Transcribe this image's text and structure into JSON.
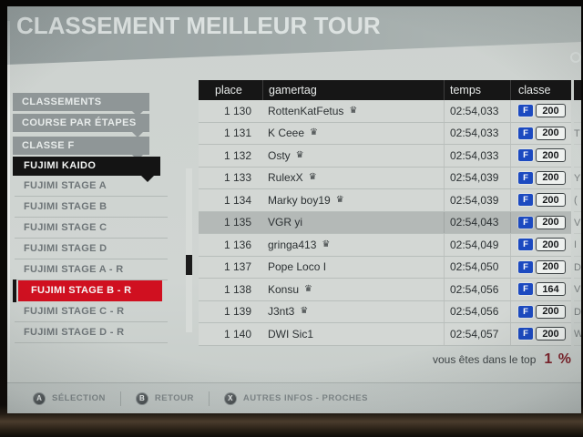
{
  "title": "CLASSEMENT MEILLEUR TOUR",
  "sidebar": {
    "tabs": [
      {
        "label": "CLASSEMENTS"
      },
      {
        "label": "COURSE PAR ÉTAPES"
      },
      {
        "label": "CLASSE F"
      }
    ],
    "section": {
      "label": "FUJIMI KAIDO"
    },
    "items": [
      {
        "label": "FUJIMI STAGE A",
        "selected": false
      },
      {
        "label": "FUJIMI STAGE B",
        "selected": false
      },
      {
        "label": "FUJIMI STAGE C",
        "selected": false
      },
      {
        "label": "FUJIMI STAGE D",
        "selected": false
      },
      {
        "label": "FUJIMI STAGE A - R",
        "selected": false
      },
      {
        "label": "FUJIMI STAGE B - R",
        "selected": true
      },
      {
        "label": "FUJIMI STAGE C - R",
        "selected": false
      },
      {
        "label": "FUJIMI STAGE D - R",
        "selected": false
      }
    ]
  },
  "table": {
    "columns": {
      "place": "place",
      "gamertag": "gamertag",
      "temps": "temps",
      "classe": "classe"
    },
    "rows": [
      {
        "place": "1 130",
        "gamertag": "RottenKatFetus",
        "crown": true,
        "temps": "02:54,033",
        "class_letter": "F",
        "class_value": "200",
        "highlighted": false,
        "edge_fragment": ""
      },
      {
        "place": "1 131",
        "gamertag": "K Ceee",
        "crown": true,
        "temps": "02:54,033",
        "class_letter": "F",
        "class_value": "200",
        "highlighted": false,
        "edge_fragment": "T"
      },
      {
        "place": "1 132",
        "gamertag": "Osty",
        "crown": true,
        "temps": "02:54,033",
        "class_letter": "F",
        "class_value": "200",
        "highlighted": false,
        "edge_fragment": ""
      },
      {
        "place": "1 133",
        "gamertag": "RulexX",
        "crown": true,
        "temps": "02:54,039",
        "class_letter": "F",
        "class_value": "200",
        "highlighted": false,
        "edge_fragment": "Y"
      },
      {
        "place": "1 134",
        "gamertag": "Marky boy19",
        "crown": true,
        "temps": "02:54,039",
        "class_letter": "F",
        "class_value": "200",
        "highlighted": false,
        "edge_fragment": "("
      },
      {
        "place": "1 135",
        "gamertag": "VGR yi",
        "crown": false,
        "temps": "02:54,043",
        "class_letter": "F",
        "class_value": "200",
        "highlighted": true,
        "edge_fragment": "V"
      },
      {
        "place": "1 136",
        "gamertag": "gringa413",
        "crown": true,
        "temps": "02:54,049",
        "class_letter": "F",
        "class_value": "200",
        "highlighted": false,
        "edge_fragment": "I"
      },
      {
        "place": "1 137",
        "gamertag": "Pope Loco I",
        "crown": false,
        "temps": "02:54,050",
        "class_letter": "F",
        "class_value": "200",
        "highlighted": false,
        "edge_fragment": "D"
      },
      {
        "place": "1 138",
        "gamertag": "Konsu",
        "crown": true,
        "temps": "02:54,056",
        "class_letter": "F",
        "class_value": "164",
        "highlighted": false,
        "edge_fragment": "V"
      },
      {
        "place": "1 139",
        "gamertag": "J3nt3",
        "crown": true,
        "temps": "02:54,056",
        "class_letter": "F",
        "class_value": "200",
        "highlighted": false,
        "edge_fragment": "D"
      },
      {
        "place": "1 140",
        "gamertag": "DWI Sic1",
        "crown": false,
        "temps": "02:54,057",
        "class_letter": "F",
        "class_value": "200",
        "highlighted": false,
        "edge_fragment": "W"
      }
    ]
  },
  "rank_banner": {
    "text": "vous êtes dans le top",
    "value": "1 %"
  },
  "controls": [
    {
      "button": "A",
      "label": "SÉLECTION"
    },
    {
      "button": "B",
      "label": "RETOUR"
    },
    {
      "button": "X",
      "label": "AUTRES INFOS - PROCHES"
    }
  ],
  "icons": {
    "crown": "♛"
  },
  "colors": {
    "accent_red": "#d01020",
    "class_badge_blue": "#1c4ac0",
    "rank_value_red": "#7e222b",
    "header_black": "#161616",
    "highlight_row_gray": "#b4b9b7"
  }
}
